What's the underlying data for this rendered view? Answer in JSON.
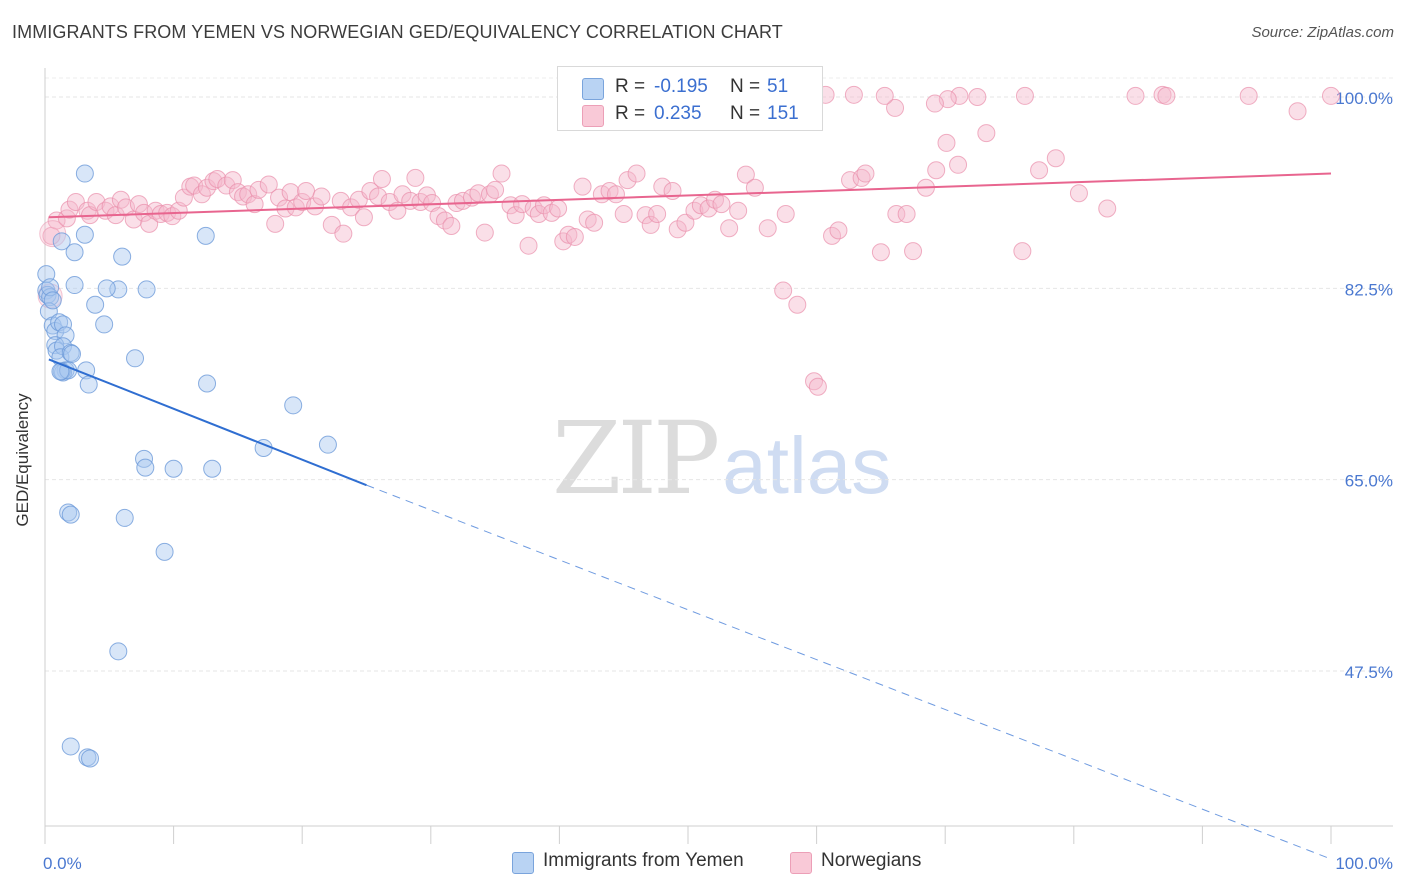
{
  "chart_data": {
    "type": "scatter",
    "title": "IMMIGRANTS FROM YEMEN VS NORWEGIAN GED/EQUIVALENCY CORRELATION CHART",
    "source": "Source: ZipAtlas.com",
    "xlabel": "",
    "ylabel": "GED/Equivalency",
    "xlim": [
      0,
      100
    ],
    "ylim": [
      30,
      102
    ],
    "x_tick_labels": {
      "left": "0.0%",
      "right": "100.0%"
    },
    "y_ticks": [
      {
        "value": 100.0,
        "label": "100.0%"
      },
      {
        "value": 82.5,
        "label": "82.5%"
      },
      {
        "value": 65.0,
        "label": "65.0%"
      },
      {
        "value": 47.5,
        "label": "47.5%"
      }
    ],
    "grid": true,
    "legend_position": "top-center",
    "watermark": {
      "zip": "ZIP",
      "atlas": "atlas"
    },
    "legend_stats": [
      {
        "r_label": "R =",
        "r_value": "-0.195",
        "n_label": "N =",
        "n_value": "51"
      },
      {
        "r_label": "R =",
        "r_value": "0.235",
        "n_label": "N =",
        "n_value": "151"
      }
    ],
    "series": [
      {
        "name": "Immigrants from Yemen",
        "color": "#a9c7ef",
        "stroke": "#6e9bd9",
        "trend_color": "#2f6ed1",
        "trend": {
          "x0": 0.3,
          "y0": 76.0,
          "x1": 25.0,
          "y1": 64.5,
          "dash_to_x": 100,
          "dash_to_y": 30.3
        },
        "points": [
          [
            0.1,
            83.8
          ],
          [
            0.1,
            82.3
          ],
          [
            0.2,
            81.9
          ],
          [
            0.4,
            81.7
          ],
          [
            0.3,
            80.4
          ],
          [
            0.4,
            82.6
          ],
          [
            0.6,
            81.4
          ],
          [
            0.6,
            79.1
          ],
          [
            0.8,
            78.6
          ],
          [
            1.1,
            79.4
          ],
          [
            1.4,
            79.2
          ],
          [
            1.6,
            78.2
          ],
          [
            0.8,
            77.3
          ],
          [
            0.9,
            76.8
          ],
          [
            1.4,
            77.2
          ],
          [
            1.2,
            76.2
          ],
          [
            1.6,
            75.0
          ],
          [
            2.0,
            76.6
          ],
          [
            1.4,
            74.8
          ],
          [
            1.3,
            74.9
          ],
          [
            1.8,
            75.0
          ],
          [
            1.2,
            74.9
          ],
          [
            2.1,
            76.5
          ],
          [
            3.2,
            75.0
          ],
          [
            3.4,
            73.7
          ],
          [
            1.3,
            86.8
          ],
          [
            2.3,
            85.8
          ],
          [
            3.1,
            87.4
          ],
          [
            3.1,
            93.0
          ],
          [
            2.3,
            82.8
          ],
          [
            3.9,
            81.0
          ],
          [
            4.6,
            79.2
          ],
          [
            5.7,
            82.4
          ],
          [
            4.8,
            82.5
          ],
          [
            6.0,
            85.4
          ],
          [
            7.0,
            76.1
          ],
          [
            7.9,
            82.4
          ],
          [
            12.5,
            87.3
          ],
          [
            12.6,
            73.8
          ],
          [
            17.0,
            67.9
          ],
          [
            19.3,
            71.8
          ],
          [
            22.0,
            68.2
          ],
          [
            7.7,
            66.9
          ],
          [
            7.8,
            66.1
          ],
          [
            10.0,
            66.0
          ],
          [
            13.0,
            66.0
          ],
          [
            1.8,
            62.0
          ],
          [
            2.0,
            61.8
          ],
          [
            6.2,
            61.5
          ],
          [
            9.3,
            58.4
          ],
          [
            5.7,
            49.3
          ]
        ],
        "points_low": [
          [
            2.0,
            40.6
          ],
          [
            3.3,
            39.6
          ],
          [
            3.5,
            39.5
          ]
        ]
      },
      {
        "name": "Norwegians",
        "color": "#f5b8cb",
        "stroke": "#e98fab",
        "trend_color": "#e8658f",
        "trend": {
          "x0": 0.3,
          "y0": 89.0,
          "x1": 100,
          "y1": 93.0
        },
        "points": [
          [
            0.5,
            87.3
          ],
          [
            0.9,
            88.7
          ],
          [
            1.7,
            88.9
          ],
          [
            1.9,
            89.7
          ],
          [
            2.4,
            90.4
          ],
          [
            3.3,
            89.6
          ],
          [
            3.5,
            89.2
          ],
          [
            4.0,
            90.4
          ],
          [
            4.7,
            89.6
          ],
          [
            5.1,
            90.0
          ],
          [
            5.5,
            89.2
          ],
          [
            5.9,
            90.6
          ],
          [
            6.3,
            89.9
          ],
          [
            6.9,
            88.8
          ],
          [
            7.3,
            90.2
          ],
          [
            7.7,
            89.4
          ],
          [
            8.1,
            88.4
          ],
          [
            8.6,
            89.6
          ],
          [
            9.0,
            89.3
          ],
          [
            9.5,
            89.4
          ],
          [
            9.9,
            89.1
          ],
          [
            10.4,
            89.6
          ],
          [
            10.8,
            90.8
          ],
          [
            11.3,
            91.8
          ],
          [
            11.6,
            91.9
          ],
          [
            12.2,
            91.1
          ],
          [
            12.6,
            91.7
          ],
          [
            13.1,
            92.3
          ],
          [
            13.4,
            92.5
          ],
          [
            14.1,
            91.9
          ],
          [
            14.6,
            92.4
          ],
          [
            15.0,
            91.3
          ],
          [
            15.4,
            90.9
          ],
          [
            15.8,
            91.1
          ],
          [
            16.3,
            90.2
          ],
          [
            16.6,
            91.5
          ],
          [
            17.4,
            92.0
          ],
          [
            17.9,
            88.4
          ],
          [
            18.2,
            90.8
          ],
          [
            18.7,
            89.8
          ],
          [
            19.1,
            91.3
          ],
          [
            19.5,
            89.9
          ],
          [
            20.0,
            90.4
          ],
          [
            20.3,
            91.4
          ],
          [
            21.0,
            90.0
          ],
          [
            21.5,
            90.9
          ],
          [
            22.3,
            88.3
          ],
          [
            23.0,
            90.5
          ],
          [
            23.2,
            87.5
          ],
          [
            23.8,
            89.9
          ],
          [
            24.4,
            90.6
          ],
          [
            24.8,
            89.0
          ],
          [
            25.3,
            91.4
          ],
          [
            25.9,
            90.9
          ],
          [
            26.2,
            92.5
          ],
          [
            26.8,
            90.4
          ],
          [
            27.4,
            89.6
          ],
          [
            27.8,
            91.1
          ],
          [
            28.4,
            90.5
          ],
          [
            28.8,
            92.6
          ],
          [
            29.2,
            90.4
          ],
          [
            29.7,
            91.0
          ],
          [
            30.1,
            90.3
          ],
          [
            30.6,
            89.1
          ],
          [
            31.1,
            88.7
          ],
          [
            31.6,
            88.2
          ],
          [
            32.0,
            90.3
          ],
          [
            32.5,
            90.5
          ],
          [
            33.2,
            90.8
          ],
          [
            33.7,
            91.2
          ],
          [
            34.2,
            87.6
          ],
          [
            34.6,
            91.1
          ],
          [
            35.0,
            91.5
          ],
          [
            35.5,
            93.0
          ],
          [
            36.2,
            90.1
          ],
          [
            36.6,
            89.2
          ],
          [
            37.1,
            90.2
          ],
          [
            37.6,
            86.4
          ],
          [
            38.0,
            89.8
          ],
          [
            38.4,
            89.3
          ],
          [
            38.8,
            90.1
          ],
          [
            39.4,
            89.4
          ],
          [
            39.9,
            89.8
          ],
          [
            40.3,
            86.8
          ],
          [
            40.7,
            87.4
          ],
          [
            41.2,
            87.2
          ],
          [
            41.8,
            91.8
          ],
          [
            42.2,
            88.8
          ],
          [
            42.7,
            88.5
          ],
          [
            43.3,
            91.1
          ],
          [
            43.9,
            91.4
          ],
          [
            44.4,
            91.1
          ],
          [
            45.0,
            89.3
          ],
          [
            45.3,
            92.4
          ],
          [
            46.0,
            93.0
          ],
          [
            46.7,
            89.2
          ],
          [
            47.1,
            88.3
          ],
          [
            47.6,
            89.3
          ],
          [
            48.0,
            91.8
          ],
          [
            48.8,
            91.4
          ],
          [
            49.2,
            87.9
          ],
          [
            49.8,
            88.5
          ],
          [
            50.5,
            89.6
          ],
          [
            51.0,
            90.1
          ],
          [
            51.6,
            89.8
          ],
          [
            52.1,
            90.6
          ],
          [
            52.6,
            90.2
          ],
          [
            53.2,
            88.0
          ],
          [
            53.9,
            89.6
          ],
          [
            54.5,
            92.9
          ],
          [
            55.2,
            91.7
          ],
          [
            56.2,
            88.0
          ],
          [
            57.4,
            82.3
          ],
          [
            57.6,
            89.3
          ],
          [
            58.5,
            81.0
          ],
          [
            59.8,
            74.0
          ],
          [
            60.1,
            73.5
          ],
          [
            61.2,
            87.3
          ],
          [
            61.7,
            87.8
          ],
          [
            62.6,
            92.4
          ],
          [
            63.5,
            92.6
          ],
          [
            63.8,
            93.0
          ],
          [
            65.0,
            85.8
          ],
          [
            66.2,
            89.3
          ],
          [
            67.0,
            89.3
          ],
          [
            67.5,
            85.9
          ],
          [
            68.5,
            91.7
          ],
          [
            69.3,
            93.3
          ],
          [
            70.1,
            95.8
          ],
          [
            71.0,
            93.8
          ],
          [
            73.2,
            96.7
          ],
          [
            76.0,
            85.9
          ],
          [
            77.3,
            93.3
          ],
          [
            78.6,
            94.4
          ],
          [
            80.4,
            91.2
          ],
          [
            82.6,
            89.8
          ],
          [
            84.8,
            100.1
          ],
          [
            86.9,
            100.2
          ],
          [
            87.2,
            100.1
          ],
          [
            93.6,
            100.1
          ],
          [
            97.4,
            98.7
          ],
          [
            100.0,
            100.1
          ],
          [
            76.2,
            100.1
          ],
          [
            72.5,
            100.0
          ],
          [
            71.1,
            100.1
          ],
          [
            70.2,
            99.8
          ],
          [
            69.2,
            99.4
          ],
          [
            66.1,
            99.0
          ],
          [
            65.3,
            100.1
          ],
          [
            62.9,
            100.2
          ],
          [
            60.7,
            100.2
          ]
        ]
      }
    ]
  }
}
